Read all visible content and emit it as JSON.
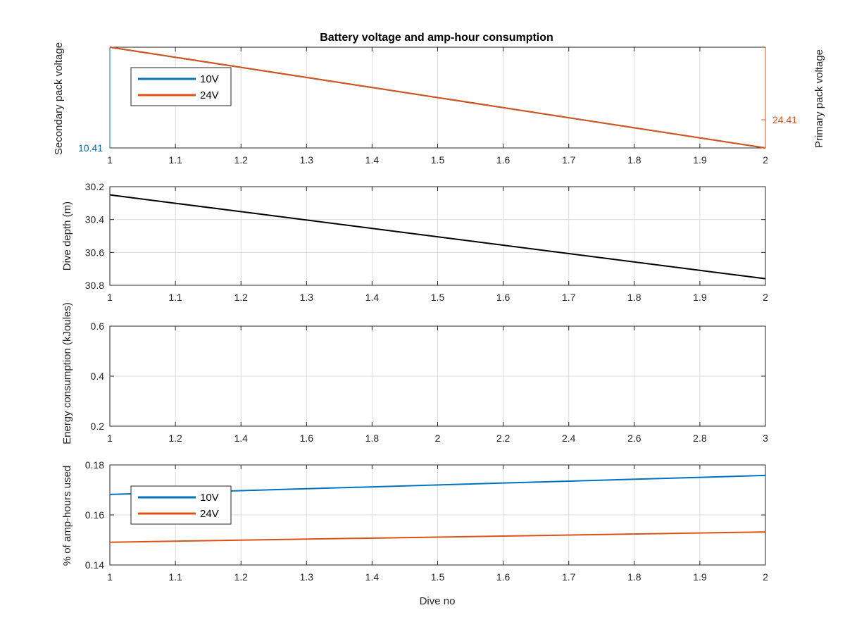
{
  "figure": {
    "title": "Battery voltage and amp-hour consumption",
    "colors": {
      "blue": "#0072BD",
      "orange": "#D95319",
      "black": "#000000"
    }
  },
  "chart_data": [
    {
      "type": "line",
      "title": "Battery voltage and amp-hour consumption",
      "xlabel": "",
      "ylabel_left": "Secondary pack voltage",
      "ylabel_right": "Primary pack voltage",
      "xlim": [
        1,
        2
      ],
      "xticks": [
        "1",
        "1.1",
        "1.2",
        "1.3",
        "1.4",
        "1.5",
        "1.6",
        "1.7",
        "1.8",
        "1.9",
        "2"
      ],
      "yticks_left": [
        "10.41"
      ],
      "yticks_right": [
        "24.41"
      ],
      "x": [
        1,
        2
      ],
      "series": [
        {
          "name": "10V",
          "color": "#0072BD",
          "axis": "left",
          "y_norm": [
            1,
            0
          ]
        },
        {
          "name": "24V",
          "color": "#D95319",
          "axis": "right",
          "y_norm": [
            1,
            0
          ]
        }
      ],
      "legend": {
        "entries": [
          "10V",
          "24V"
        ],
        "position": "top-left"
      },
      "grid": true
    },
    {
      "type": "line",
      "ylabel": "Dive depth (m)",
      "xlim": [
        1,
        2
      ],
      "ylim": [
        30.2,
        30.8
      ],
      "y_reversed": true,
      "xticks": [
        "1",
        "1.1",
        "1.2",
        "1.3",
        "1.4",
        "1.5",
        "1.6",
        "1.7",
        "1.8",
        "1.9",
        "2"
      ],
      "yticks": [
        "30.2",
        "30.4",
        "30.6",
        "30.8"
      ],
      "x": [
        1,
        2
      ],
      "series": [
        {
          "color": "#000000",
          "y": [
            30.25,
            30.76
          ]
        }
      ],
      "grid": true
    },
    {
      "type": "line",
      "ylabel": "Energy consumption (kJoules)",
      "xlim": [
        1,
        3
      ],
      "ylim": [
        0.2,
        0.6
      ],
      "xticks": [
        "1",
        "1.2",
        "1.4",
        "1.6",
        "1.8",
        "2",
        "2.2",
        "2.4",
        "2.6",
        "2.8",
        "3"
      ],
      "yticks": [
        "0.2",
        "0.4",
        "0.6"
      ],
      "series": [],
      "grid": true
    },
    {
      "type": "line",
      "xlabel": "Dive no",
      "ylabel": "% of amp-hours used",
      "xlim": [
        1,
        2
      ],
      "ylim": [
        0.14,
        0.18
      ],
      "xticks": [
        "1",
        "1.1",
        "1.2",
        "1.3",
        "1.4",
        "1.5",
        "1.6",
        "1.7",
        "1.8",
        "1.9",
        "2"
      ],
      "yticks": [
        "0.14",
        "0.16",
        "0.18"
      ],
      "x": [
        1,
        2
      ],
      "series": [
        {
          "name": "10V",
          "color": "#0072BD",
          "y": [
            0.1682,
            0.1758
          ]
        },
        {
          "name": "24V",
          "color": "#D95319",
          "y": [
            0.1491,
            0.1532
          ]
        }
      ],
      "legend": {
        "entries": [
          "10V",
          "24V"
        ],
        "position": "bottom-left"
      },
      "grid": true
    }
  ]
}
